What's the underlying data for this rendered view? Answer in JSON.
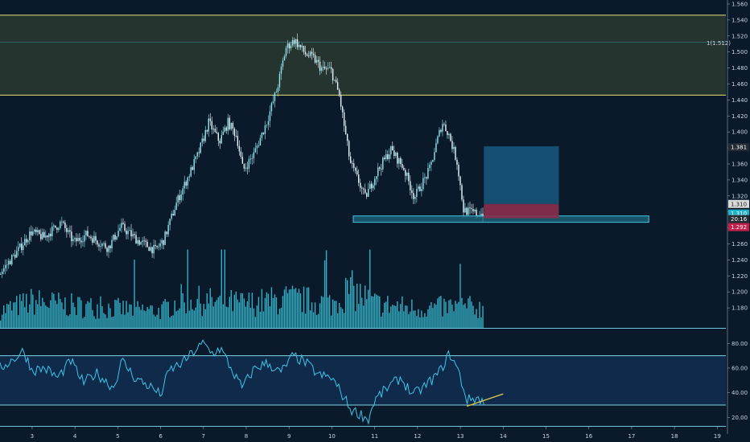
{
  "colors": {
    "background": "#0b1a2b",
    "candle_up": "#8fe6f0",
    "candle_down": "#eaf7ff",
    "volume": "#3cc9df",
    "zone_fill": "#2a3a2f",
    "zone_line": "#e6e07a",
    "fib_line": "#3fb7cf",
    "support_fill": "#1e6f86",
    "support_line": "#3fc6de",
    "target_fill": "#16567a",
    "stop_fill": "#8a2f4e",
    "rsi_line": "#3fc6e8",
    "rsi_band_fill": "#0f2a4a",
    "rsi_band_line": "#7fd7e6",
    "trend_line": "#d4c24a",
    "axis_text": "#c9d4e0",
    "tag_bg_gray": "#d9d9d9",
    "tag_bg_teal": "#1fb3c9",
    "tag_bg_dark": "#222a33",
    "tag_bg_red": "#c21f4a"
  },
  "annotations": {
    "fib_label": "1(1.512)"
  },
  "chart_data": {
    "type": "candlestick",
    "price_axis": {
      "ylim": [
        1.155,
        1.565
      ],
      "ticks": [
        1.18,
        1.2,
        1.22,
        1.24,
        1.26,
        1.28,
        1.3,
        1.32,
        1.34,
        1.36,
        1.38,
        1.4,
        1.42,
        1.44,
        1.46,
        1.48,
        1.5,
        1.52,
        1.54,
        1.56
      ],
      "tick_labels": [
        "1.180",
        "1.200",
        "1.220",
        "1.240",
        "1.260",
        "1.280",
        "1.300",
        "1.320",
        "1.340",
        "1.360",
        "1.380",
        "1.400",
        "1.420",
        "1.440",
        "1.460",
        "1.480",
        "1.500",
        "1.520",
        "1.540",
        "1.560"
      ]
    },
    "x_axis": {
      "xlim": [
        2.25,
        19.2
      ],
      "ticks": [
        3,
        4,
        5,
        6,
        7,
        8,
        9,
        10,
        11,
        12,
        13,
        14,
        15,
        16,
        17,
        18,
        19
      ],
      "tick_labels": [
        "3",
        "4",
        "5",
        "6",
        "7",
        "8",
        "9",
        "10",
        "11",
        "12",
        "13",
        "14",
        "15",
        "16",
        "17",
        "18",
        "19"
      ]
    },
    "price_path": [
      [
        2.25,
        1.222
      ],
      [
        2.7,
        1.252
      ],
      [
        3.0,
        1.275
      ],
      [
        3.3,
        1.268
      ],
      [
        3.7,
        1.287
      ],
      [
        4.0,
        1.262
      ],
      [
        4.3,
        1.272
      ],
      [
        4.8,
        1.255
      ],
      [
        5.1,
        1.282
      ],
      [
        5.5,
        1.264
      ],
      [
        5.9,
        1.252
      ],
      [
        6.1,
        1.265
      ],
      [
        6.4,
        1.312
      ],
      [
        6.9,
        1.372
      ],
      [
        7.15,
        1.412
      ],
      [
        7.4,
        1.388
      ],
      [
        7.6,
        1.412
      ],
      [
        7.8,
        1.395
      ],
      [
        7.95,
        1.352
      ],
      [
        8.2,
        1.372
      ],
      [
        8.5,
        1.412
      ],
      [
        8.75,
        1.455
      ],
      [
        8.95,
        1.505
      ],
      [
        9.15,
        1.515
      ],
      [
        9.4,
        1.498
      ],
      [
        9.6,
        1.492
      ],
      [
        9.8,
        1.478
      ],
      [
        10.0,
        1.478
      ],
      [
        10.2,
        1.445
      ],
      [
        10.45,
        1.362
      ],
      [
        10.65,
        1.338
      ],
      [
        10.8,
        1.318
      ],
      [
        11.1,
        1.352
      ],
      [
        11.4,
        1.378
      ],
      [
        11.7,
        1.355
      ],
      [
        11.95,
        1.318
      ],
      [
        12.3,
        1.352
      ],
      [
        12.6,
        1.412
      ],
      [
        12.75,
        1.398
      ],
      [
        12.95,
        1.362
      ],
      [
        13.1,
        1.302
      ],
      [
        13.4,
        1.298
      ],
      [
        13.55,
        1.298
      ]
    ],
    "volume_path": [
      [
        2.25,
        0.35
      ],
      [
        3.0,
        0.55
      ],
      [
        4.0,
        0.45
      ],
      [
        5.0,
        0.4
      ],
      [
        6.0,
        0.35
      ],
      [
        6.5,
        0.6
      ],
      [
        7.0,
        0.55
      ],
      [
        8.0,
        0.5
      ],
      [
        9.0,
        0.6
      ],
      [
        9.5,
        0.55
      ],
      [
        10.0,
        0.5
      ],
      [
        10.4,
        0.8
      ],
      [
        11.0,
        0.5
      ],
      [
        12.0,
        0.4
      ],
      [
        13.0,
        0.45
      ],
      [
        13.55,
        0.4
      ]
    ],
    "zones": {
      "resistance": [
        1.446,
        1.546
      ],
      "fib_level": 1.512,
      "support_box": {
        "x": [
          10.5,
          17.4
        ],
        "y": [
          1.287,
          1.295
        ]
      },
      "position_target": {
        "x": [
          13.55,
          15.3
        ],
        "y": [
          1.31,
          1.382
        ]
      },
      "position_stop": {
        "x": [
          13.55,
          15.3
        ],
        "y": [
          1.292,
          1.31
        ]
      }
    },
    "price_tags": [
      {
        "value": 1.381,
        "label": "1.381",
        "style": "dark"
      },
      {
        "value": 1.31,
        "label": "1.310",
        "style": "gray"
      },
      {
        "value": 1.298,
        "label": "1.310",
        "style": "teal"
      },
      {
        "value": 1.291,
        "label": "20:16",
        "style": "dark"
      },
      {
        "value": 1.281,
        "label": "1.292",
        "style": "red"
      }
    ],
    "rsi": {
      "ylim": [
        13,
        90
      ],
      "band": [
        30,
        70
      ],
      "ticks": [
        20,
        40,
        60,
        80
      ],
      "tick_labels": [
        "20.00",
        "40.00",
        "60.00",
        "80.00"
      ],
      "path": [
        [
          2.25,
          60
        ],
        [
          2.6,
          68
        ],
        [
          2.8,
          74
        ],
        [
          3.0,
          58
        ],
        [
          3.3,
          60
        ],
        [
          3.6,
          52
        ],
        [
          3.9,
          66
        ],
        [
          4.2,
          48
        ],
        [
          4.5,
          56
        ],
        [
          4.9,
          44
        ],
        [
          5.1,
          66
        ],
        [
          5.4,
          52
        ],
        [
          5.8,
          44
        ],
        [
          6.0,
          38
        ],
        [
          6.2,
          58
        ],
        [
          6.5,
          64
        ],
        [
          6.8,
          74
        ],
        [
          7.0,
          80
        ],
        [
          7.2,
          72
        ],
        [
          7.4,
          76
        ],
        [
          7.7,
          56
        ],
        [
          7.9,
          44
        ],
        [
          8.2,
          60
        ],
        [
          8.5,
          64
        ],
        [
          8.8,
          56
        ],
        [
          9.1,
          70
        ],
        [
          9.4,
          64
        ],
        [
          9.7,
          54
        ],
        [
          10.0,
          52
        ],
        [
          10.25,
          38
        ],
        [
          10.45,
          26
        ],
        [
          10.7,
          22
        ],
        [
          10.85,
          18
        ],
        [
          11.0,
          34
        ],
        [
          11.3,
          44
        ],
        [
          11.6,
          52
        ],
        [
          11.9,
          38
        ],
        [
          12.2,
          46
        ],
        [
          12.5,
          56
        ],
        [
          12.75,
          72
        ],
        [
          12.95,
          58
        ],
        [
          13.15,
          34
        ],
        [
          13.4,
          36
        ],
        [
          13.55,
          32
        ]
      ],
      "trend_line": [
        [
          13.15,
          29
        ],
        [
          14.0,
          39
        ]
      ]
    }
  }
}
